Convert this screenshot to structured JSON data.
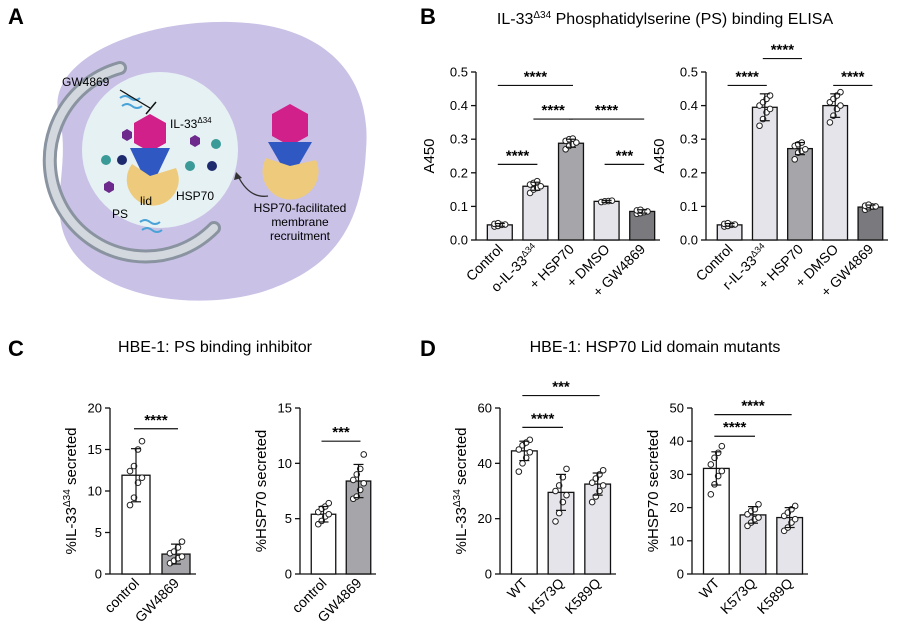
{
  "panel_letters": {
    "a": "A",
    "b": "B",
    "c": "C",
    "d": "D"
  },
  "diagram": {
    "inhibitor": "GW4869",
    "il33_prefix": "IL-33",
    "il33_sup": "Δ34",
    "lid": "lid",
    "hsp70": "HSP70",
    "ps": "PS",
    "caption_line1": "HSP70-facilitated",
    "caption_line2": "membrane",
    "caption_line3": "recruitment",
    "colors": {
      "cell": "#c9c1e6",
      "vesicle": "#e6f1f4",
      "membrane": "#a0a8b4",
      "hexagon": "#d2208a",
      "triangle": "#2f58c2",
      "hsp70": "#eecb7c",
      "teal_dot": "#3a9a97",
      "navy_dot": "#1e2a6e",
      "purple_hex": "#6d2a8c",
      "wavy": "#4aa3d8"
    }
  },
  "panel_b": {
    "title_prefix": "IL-33",
    "title_sup": "Δ34",
    "title_suffix": " Phosphatidylserine (PS) binding ELISA"
  },
  "panel_c": {
    "title": "HBE-1: PS binding inhibitor"
  },
  "panel_d": {
    "title": "HBE-1: HSP70 Lid domain mutants"
  },
  "chart_data": [
    {
      "id": "b1",
      "type": "bar",
      "ylabel": "A450",
      "ylim": [
        0,
        0.5
      ],
      "yticks": [
        0,
        0.1,
        0.2,
        0.3,
        0.4,
        0.5
      ],
      "ytick_labels": [
        "0.0",
        "0.1",
        "0.2",
        "0.3",
        "0.4",
        "0.5"
      ],
      "categories": [
        "Control",
        "o-IL-33Δ34",
        "+ HSP70",
        "+ DMSO",
        "+ GW4869"
      ],
      "values": [
        0.045,
        0.16,
        0.288,
        0.115,
        0.085
      ],
      "errors": [
        0.004,
        0.012,
        0.012,
        0.003,
        0.005
      ],
      "colors": [
        "#e4e4ea",
        "#e4e4ea",
        "#a6a6aa",
        "#e4e4ea",
        "#7a7a7e"
      ],
      "points": [
        [
          0.04,
          0.042,
          0.045,
          0.046,
          0.048,
          0.05
        ],
        [
          0.14,
          0.15,
          0.155,
          0.16,
          0.165,
          0.17,
          0.175
        ],
        [
          0.27,
          0.28,
          0.285,
          0.29,
          0.295,
          0.3,
          0.302
        ],
        [
          0.113,
          0.115,
          0.116,
          0.117
        ],
        [
          0.078,
          0.08,
          0.083,
          0.085,
          0.088,
          0.09
        ]
      ],
      "significance": [
        {
          "a": 0,
          "b": 1,
          "label": "****",
          "y": 0.225
        },
        {
          "a": 0,
          "b": 2,
          "label": "****",
          "y": 0.46
        },
        {
          "a": 1,
          "b": 2,
          "label": "****",
          "y": 0.36
        },
        {
          "a": 2,
          "b": 4,
          "label": "****",
          "y": 0.36
        },
        {
          "a": 3,
          "b": 4,
          "label": "***",
          "y": 0.225
        }
      ]
    },
    {
      "id": "b2",
      "type": "bar",
      "ylabel": "A450",
      "ylim": [
        0,
        0.5
      ],
      "yticks": [
        0,
        0.1,
        0.2,
        0.3,
        0.4,
        0.5
      ],
      "ytick_labels": [
        "0.0",
        "0.1",
        "0.2",
        "0.3",
        "0.4",
        "0.5"
      ],
      "categories": [
        "Control",
        "r-IL-33Δ34",
        "+ HSP70",
        "+ DMSO",
        "+ GW4869"
      ],
      "values": [
        0.045,
        0.395,
        0.272,
        0.4,
        0.098
      ],
      "errors": [
        0.004,
        0.04,
        0.018,
        0.035,
        0.006
      ],
      "colors": [
        "#e4e4ea",
        "#e4e4ea",
        "#a6a6aa",
        "#e4e4ea",
        "#7a7a7e"
      ],
      "points": [
        [
          0.04,
          0.042,
          0.045,
          0.046,
          0.048,
          0.05
        ],
        [
          0.34,
          0.36,
          0.38,
          0.39,
          0.4,
          0.41,
          0.42,
          0.43
        ],
        [
          0.24,
          0.26,
          0.265,
          0.27,
          0.28,
          0.285,
          0.29
        ],
        [
          0.35,
          0.37,
          0.39,
          0.4,
          0.41,
          0.42,
          0.43,
          0.44
        ],
        [
          0.09,
          0.095,
          0.1,
          0.1,
          0.102,
          0.105
        ]
      ],
      "significance": [
        {
          "a": 0,
          "b": 1,
          "label": "****",
          "y": 0.46
        },
        {
          "a": 1,
          "b": 2,
          "label": "****",
          "y": 0.54
        },
        {
          "a": 3,
          "b": 4,
          "label": "****",
          "y": 0.46
        }
      ]
    },
    {
      "id": "c1",
      "type": "bar",
      "ylabel_prefix": "%IL-33",
      "ylabel_sup": "Δ34",
      "ylabel_suffix": " secreted",
      "ylim": [
        0,
        20
      ],
      "yticks": [
        0,
        5,
        10,
        15,
        20
      ],
      "ytick_labels": [
        "0",
        "5",
        "10",
        "15",
        "20"
      ],
      "categories": [
        "control",
        "GW4869"
      ],
      "values": [
        11.9,
        2.4
      ],
      "errors": [
        3.2,
        1.2
      ],
      "colors": [
        "#ffffff",
        "#a6a6aa"
      ],
      "points": [
        [
          8.3,
          9.2,
          11.0,
          11.6,
          12.4,
          13.0,
          15.0,
          16.0
        ],
        [
          1.3,
          1.6,
          1.9,
          2.1,
          2.5,
          2.7,
          3.2,
          3.9
        ]
      ],
      "significance": [
        {
          "a": 0,
          "b": 1,
          "label": "****",
          "y": 17.5
        }
      ]
    },
    {
      "id": "c2",
      "type": "bar",
      "ylabel": "%HSP70 secreted",
      "ylim": [
        0,
        15
      ],
      "yticks": [
        0,
        5,
        10,
        15
      ],
      "ytick_labels": [
        "0",
        "5",
        "10",
        "15"
      ],
      "categories": [
        "control",
        "GW4869"
      ],
      "values": [
        5.4,
        8.4
      ],
      "errors": [
        0.7,
        1.5
      ],
      "colors": [
        "#ffffff",
        "#a6a6aa"
      ],
      "points": [
        [
          4.5,
          4.8,
          5.2,
          5.4,
          5.6,
          5.9,
          6.1,
          6.4
        ],
        [
          6.8,
          7.0,
          7.6,
          8.2,
          8.5,
          9.0,
          9.5,
          10.8
        ]
      ],
      "significance": [
        {
          "a": 0,
          "b": 1,
          "label": "***",
          "y": 12.0
        }
      ]
    },
    {
      "id": "d1",
      "type": "bar",
      "ylabel_prefix": "%IL-33",
      "ylabel_sup": "Δ34",
      "ylabel_suffix": " secreted",
      "ylim": [
        0,
        60
      ],
      "yticks": [
        0,
        20,
        40,
        60
      ],
      "ytick_labels": [
        "0",
        "20",
        "40",
        "60"
      ],
      "categories": [
        "WT",
        "K573Q",
        "K589Q"
      ],
      "values": [
        44.5,
        29.5,
        32.5
      ],
      "errors": [
        3.5,
        6.5,
        4.0
      ],
      "colors": [
        "#ffffff",
        "#e4e4ea",
        "#e4e4ea"
      ],
      "points": [
        [
          37.0,
          40.0,
          42.0,
          44.0,
          45.0,
          46.5,
          47.5,
          48.5
        ],
        [
          19.0,
          22.0,
          26.0,
          28.5,
          30.0,
          32.0,
          35.0,
          38.0
        ],
        [
          26.0,
          28.0,
          30.0,
          32.0,
          33.0,
          34.5,
          36.0,
          37.5
        ]
      ],
      "significance": [
        {
          "a": 0,
          "b": 1,
          "label": "****",
          "y": 53.0
        },
        {
          "a": 0,
          "b": 2,
          "label": "***",
          "y": 64.5
        }
      ]
    },
    {
      "id": "d2",
      "type": "bar",
      "ylabel": "%HSP70 secreted",
      "ylim": [
        0,
        50
      ],
      "yticks": [
        0,
        10,
        20,
        30,
        40,
        50
      ],
      "ytick_labels": [
        "0",
        "10",
        "20",
        "30",
        "40",
        "50"
      ],
      "categories": [
        "WT",
        "K573Q",
        "K589Q"
      ],
      "values": [
        31.8,
        17.8,
        17.0
      ],
      "errors": [
        5.0,
        2.5,
        3.0
      ],
      "colors": [
        "#ffffff",
        "#e4e4ea",
        "#e4e4ea"
      ],
      "points": [
        [
          24.0,
          27.0,
          29.5,
          31.0,
          33.0,
          35.0,
          36.5,
          38.5
        ],
        [
          14.5,
          15.5,
          16.5,
          17.0,
          18.0,
          19.0,
          19.5,
          21.0
        ],
        [
          13.0,
          14.0,
          15.5,
          16.5,
          17.5,
          18.5,
          19.5,
          20.5
        ]
      ],
      "significance": [
        {
          "a": 0,
          "b": 1,
          "label": "****",
          "y": 41.5
        },
        {
          "a": 0,
          "b": 2,
          "label": "****",
          "y": 48.0
        }
      ]
    }
  ]
}
